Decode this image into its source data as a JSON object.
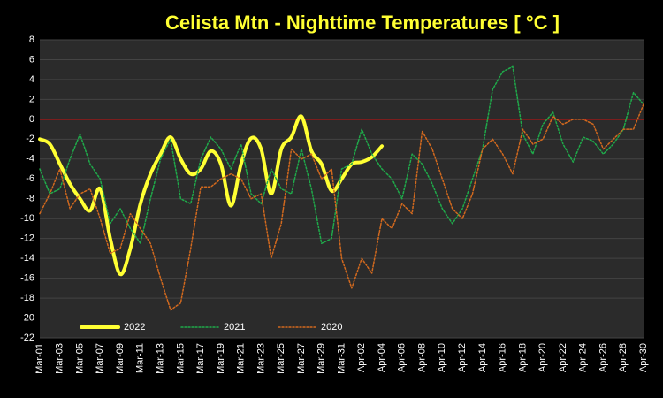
{
  "chart_data": {
    "type": "line",
    "title": "Celista Mtn - Nighttime Temperatures [ °C ]",
    "categories": [
      "Mar-01",
      null,
      "Mar-03",
      null,
      "Mar-05",
      null,
      "Mar-07",
      null,
      "Mar-09",
      null,
      "Mar-11",
      null,
      "Mar-13",
      null,
      "Mar-15",
      null,
      "Mar-17",
      null,
      "Mar-19",
      null,
      "Mar-21",
      null,
      "Mar-23",
      null,
      "Mar-25",
      null,
      "Mar-27",
      null,
      "Mar-29",
      null,
      "Mar-31",
      null,
      "Apr-02",
      null,
      "Apr-04",
      null,
      "Apr-06",
      null,
      "Apr-08",
      null,
      "Apr-10",
      null,
      "Apr-12",
      null,
      "Apr-14",
      null,
      "Apr-16",
      null,
      "Apr-18",
      null,
      "Apr-20",
      null,
      "Apr-22",
      null,
      "Apr-24",
      null,
      "Apr-26",
      null,
      "Apr-28",
      null,
      "Apr-30"
    ],
    "series": [
      {
        "name": "2022",
        "color": "#ffff33",
        "smooth": true,
        "width": 4,
        "dash": false,
        "values": [
          -2,
          -2.5,
          -4.5,
          -6.5,
          -8,
          -9.2,
          -7,
          -12,
          -15.6,
          -13,
          -8.5,
          -5.5,
          -3.5,
          -1.8,
          -4,
          -5.5,
          -5,
          -3.2,
          -4.5,
          -8.7,
          -4.5,
          -1.9,
          -3,
          -7.5,
          -3,
          -1.8,
          0.3,
          -3.2,
          -4.5,
          -7.2,
          -6,
          -4.5,
          -4.3,
          -3.8,
          -2.7,
          null,
          null,
          null,
          null,
          null,
          null,
          null,
          null,
          null,
          null,
          null,
          null,
          null,
          null,
          null,
          null,
          null,
          null,
          null,
          null,
          null,
          null,
          null,
          null,
          null,
          null
        ]
      },
      {
        "name": "2021",
        "color": "#1faa4a",
        "smooth": false,
        "width": 1.5,
        "dash": true,
        "values": [
          -5,
          -7.5,
          -7,
          -4,
          -1.5,
          -4.5,
          -6,
          -10.5,
          -9,
          -11,
          -12.5,
          -8,
          -4,
          -2,
          -8,
          -8.5,
          -4,
          -1.8,
          -3,
          -5,
          -2.5,
          -7.5,
          -8.5,
          -5,
          -7,
          -7.5,
          -3,
          -7,
          -12.5,
          -12,
          -5,
          -4.5,
          -1,
          -3.5,
          -5,
          -6,
          -8,
          -3.5,
          -4.5,
          -6.5,
          -9,
          -10.5,
          -9,
          -6,
          -3,
          3,
          4.8,
          5.3,
          -1.5,
          -3.5,
          -0.5,
          0.7,
          -2.5,
          -4.3,
          -1.8,
          -2.2,
          -3.5,
          -2.5,
          -1,
          2.7,
          1.5
        ]
      },
      {
        "name": "2020",
        "color": "#d2691e",
        "smooth": false,
        "width": 1.5,
        "dash": true,
        "values": [
          -9.5,
          -7.5,
          -5,
          -9,
          -7.5,
          -7,
          -10,
          -13.5,
          -13,
          -9.5,
          -11,
          -12.5,
          -16,
          -19.2,
          -18.5,
          -13,
          -6.8,
          -6.8,
          -6,
          -5.5,
          -6,
          -8,
          -7.5,
          -14,
          -10.5,
          -3,
          -4,
          -3.5,
          -6,
          -5,
          -14,
          -17,
          -14,
          -15.5,
          -10,
          -11,
          -8.5,
          -9.5,
          -1.2,
          -3,
          -6,
          -9,
          -10,
          -7.5,
          -3,
          -2,
          -3.5,
          -5.5,
          -1,
          -2.5,
          -2,
          0.3,
          -0.5,
          0,
          0,
          -0.5,
          -3,
          -2,
          -1,
          -1,
          1.5
        ]
      }
    ],
    "ylim": [
      -22,
      8
    ],
    "yticks": [
      -22,
      -20,
      -18,
      -16,
      -14,
      -12,
      -10,
      -8,
      -6,
      -4,
      -2,
      0,
      2,
      4,
      6,
      8
    ],
    "grid": true,
    "zero_line_color": "#ff0000",
    "legend": "bottom"
  }
}
